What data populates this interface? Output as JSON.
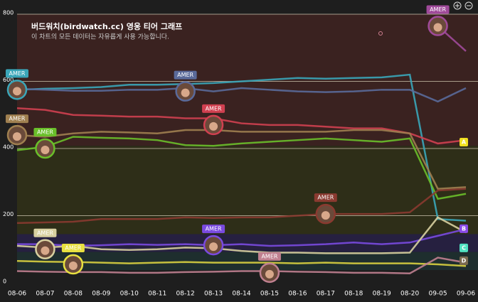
{
  "chart_data": {
    "type": "line",
    "title": "버드워치(birdwatch.cc) 영웅 티어 그래프",
    "subtitle": "이 차트의 모든 데이터는 자유롭게 사용 가능합니다.",
    "categories": [
      "08-06",
      "08-07",
      "08-08",
      "08-09",
      "08-10",
      "08-11",
      "08-12",
      "08-13",
      "08-14",
      "08-15",
      "08-16",
      "08-17",
      "08-18",
      "08-19",
      "08-20",
      "09-05",
      "09-06"
    ],
    "ylim": [
      0,
      800
    ],
    "yticks": [
      0,
      200,
      400,
      600,
      800
    ],
    "grid": true,
    "bands": [
      {
        "ymin": 408,
        "ymax": 800,
        "color": "#3a2220"
      },
      {
        "ymin": 145,
        "ymax": 408,
        "color": "#2e2e18"
      },
      {
        "ymin": 92,
        "ymax": 145,
        "color": "#262040"
      },
      {
        "ymin": 38,
        "ymax": 92,
        "color": "#1e2e2e"
      }
    ],
    "tier_labels": [
      {
        "label": "A",
        "value": 419,
        "color": "#f0e020"
      },
      {
        "label": "B",
        "value": 161,
        "color": "#8a4ae8"
      },
      {
        "label": "C",
        "value": 104,
        "color": "#50e0c0"
      },
      {
        "label": "D",
        "value": 66,
        "color": "#7a6a50"
      }
    ],
    "series": [
      {
        "color": "#3aa6b9",
        "values": [
          575,
          578,
          580,
          583,
          590,
          590,
          592,
          595,
          600,
          605,
          610,
          608,
          610,
          612,
          620,
          190,
          185
        ]
      },
      {
        "color": "#5a6a9a",
        "values": [
          578,
          575,
          572,
          572,
          575,
          575,
          580,
          570,
          580,
          575,
          570,
          568,
          570,
          575,
          575,
          540,
          580
        ]
      },
      {
        "color": "#a04a9a",
        "values": [
          null,
          null,
          null,
          null,
          null,
          null,
          null,
          null,
          null,
          null,
          null,
          null,
          null,
          null,
          null,
          765,
          690
        ]
      },
      {
        "color": "#d04050",
        "values": [
          520,
          515,
          500,
          498,
          495,
          495,
          490,
          490,
          475,
          470,
          470,
          465,
          460,
          460,
          445,
          415,
          425
        ]
      },
      {
        "color": "#a08050",
        "values": [
          440,
          435,
          445,
          450,
          448,
          445,
          455,
          455,
          450,
          450,
          450,
          450,
          455,
          455,
          445,
          280,
          285
        ]
      },
      {
        "color": "#6abf2a",
        "values": [
          395,
          405,
          435,
          432,
          430,
          425,
          410,
          408,
          415,
          420,
          425,
          430,
          425,
          420,
          430,
          250,
          265
        ]
      },
      {
        "color": "#8a3a30",
        "values": [
          178,
          180,
          182,
          190,
          190,
          190,
          195,
          193,
          195,
          195,
          200,
          205,
          205,
          205,
          210,
          275,
          280
        ]
      },
      {
        "color": "#7a4ae0",
        "values": [
          115,
          115,
          110,
          112,
          115,
          113,
          115,
          112,
          115,
          110,
          112,
          115,
          120,
          115,
          120,
          140,
          160
        ]
      },
      {
        "color": "#d8d0a0",
        "values": [
          110,
          105,
          110,
          100,
          98,
          100,
          105,
          103,
          95,
          90,
          90,
          88,
          88,
          88,
          90,
          195,
          150
        ]
      },
      {
        "color": "#d8d040",
        "values": [
          65,
          63,
          62,
          60,
          58,
          60,
          62,
          60,
          60,
          60,
          58,
          60,
          58,
          58,
          58,
          55,
          50
        ]
      },
      {
        "color": "#c08090",
        "values": [
          35,
          33,
          32,
          32,
          30,
          30,
          32,
          33,
          35,
          35,
          33,
          32,
          30,
          30,
          28,
          75,
          60
        ]
      }
    ],
    "annotations": [
      {
        "text": "AMER",
        "x": "08-06",
        "y": 575,
        "color": "#3aa6b9"
      },
      {
        "text": "AMER",
        "x": "08-06",
        "y": 440,
        "color": "#a08050"
      },
      {
        "text": "AMER",
        "x": "08-07",
        "y": 400,
        "color": "#6abf2a"
      },
      {
        "text": "AMER",
        "x": "08-12",
        "y": 570,
        "color": "#5a6a9a"
      },
      {
        "text": "AMER",
        "x": "08-13",
        "y": 470,
        "color": "#d04050"
      },
      {
        "text": "AMER",
        "x": "08-17",
        "y": 205,
        "color": "#8a3a30"
      },
      {
        "text": "AMER",
        "x": "08-13",
        "y": 112,
        "color": "#7a4ae0"
      },
      {
        "text": "AMER",
        "x": "08-07",
        "y": 100,
        "color": "#d8d0a0"
      },
      {
        "text": "AMER",
        "x": "08-08",
        "y": 55,
        "color": "#e8e040"
      },
      {
        "text": "AMER",
        "x": "08-15",
        "y": 30,
        "color": "#c08090"
      },
      {
        "text": "AMER",
        "x": "09-05",
        "y": 765,
        "color": "#a04a9a"
      }
    ]
  }
}
